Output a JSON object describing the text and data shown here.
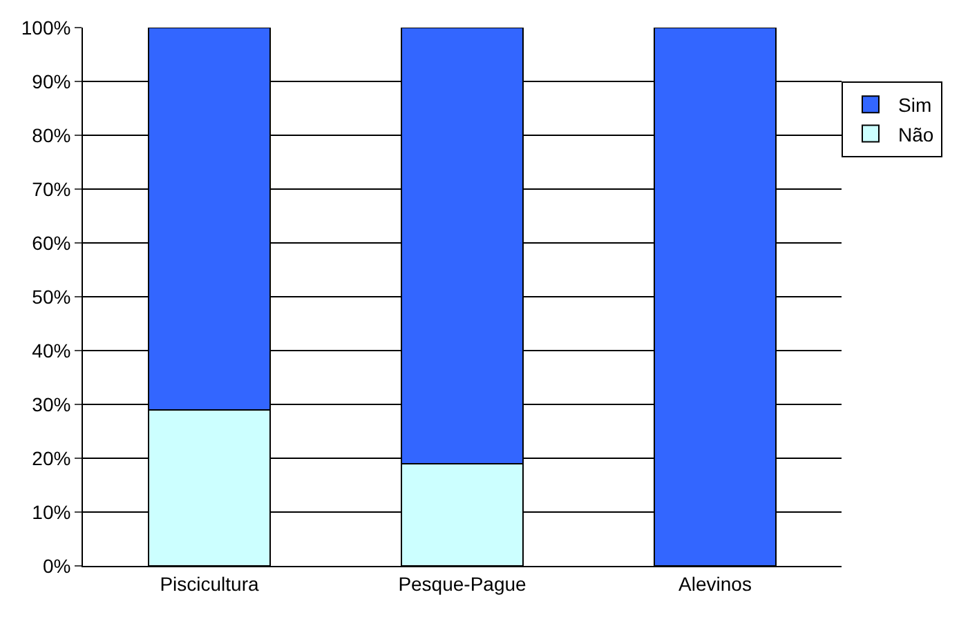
{
  "chart_data": {
    "type": "bar",
    "stacked": true,
    "categories": [
      "Piscicultura",
      "Pesque-Pague",
      "Alevinos"
    ],
    "series": [
      {
        "name": "Não",
        "color": "#ccffff",
        "values": [
          29,
          19,
          0
        ]
      },
      {
        "name": "Sim",
        "color": "#3366ff",
        "values": [
          71,
          81,
          100
        ]
      }
    ],
    "ylim": [
      0,
      100
    ],
    "yticks": [
      {
        "value": 0,
        "label": "0%"
      },
      {
        "value": 10,
        "label": "10%"
      },
      {
        "value": 20,
        "label": "20%"
      },
      {
        "value": 30,
        "label": "30%"
      },
      {
        "value": 40,
        "label": "40%"
      },
      {
        "value": 50,
        "label": "50%"
      },
      {
        "value": 60,
        "label": "60%"
      },
      {
        "value": 70,
        "label": "70%"
      },
      {
        "value": 80,
        "label": "80%"
      },
      {
        "value": 90,
        "label": "90%"
      },
      {
        "value": 100,
        "label": "100%"
      }
    ],
    "grid": "y",
    "legend": "right"
  }
}
